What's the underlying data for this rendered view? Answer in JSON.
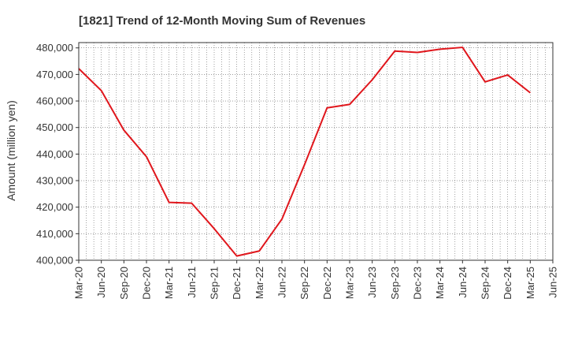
{
  "chart_data": {
    "type": "line",
    "title": "[1821]  Trend of 12-Month Moving Sum of Revenues",
    "xlabel": "",
    "ylabel": "Amount (million yen)",
    "ylim": [
      400000,
      482000
    ],
    "grid": true,
    "x_tick_labels": [
      "Mar-20",
      "Jun-20",
      "Sep-20",
      "Dec-20",
      "Mar-21",
      "Jun-21",
      "Sep-21",
      "Dec-21",
      "Mar-22",
      "Jun-22",
      "Sep-22",
      "Dec-22",
      "Mar-23",
      "Jun-23",
      "Sep-23",
      "Dec-23",
      "Mar-24",
      "Jun-24",
      "Sep-24",
      "Dec-24",
      "Mar-25",
      "Jun-25"
    ],
    "y_ticks": [
      400000,
      410000,
      420000,
      430000,
      440000,
      450000,
      460000,
      470000,
      480000
    ],
    "y_tick_labels": [
      "400,000",
      "410,000",
      "420,000",
      "430,000",
      "440,000",
      "450,000",
      "460,000",
      "470,000",
      "480,000"
    ],
    "series": [
      {
        "color": "#e0161c",
        "x": [
          "Mar-20",
          "Jun-20",
          "Sep-20",
          "Dec-20",
          "Mar-21",
          "Jun-21",
          "Sep-21",
          "Dec-21",
          "Mar-22",
          "Jun-22",
          "Sep-22",
          "Dec-22",
          "Mar-23",
          "Jun-23",
          "Sep-23",
          "Dec-23",
          "Mar-24",
          "Jun-24",
          "Sep-24",
          "Dec-24",
          "Mar-25"
        ],
        "values": [
          472200,
          463900,
          449000,
          439000,
          421800,
          421500,
          411900,
          401600,
          403500,
          415500,
          436000,
          457400,
          458700,
          468000,
          478800,
          478300,
          479500,
          480200,
          467200,
          469800,
          463100
        ]
      }
    ]
  }
}
